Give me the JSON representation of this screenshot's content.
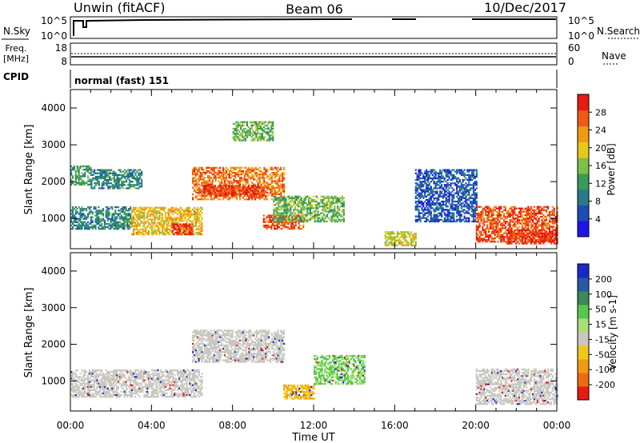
{
  "header": {
    "title_left": "Unwin (fitACF)",
    "title_center": "Beam 06",
    "title_right": "10/Dec/2017"
  },
  "status_panels": {
    "nsky": {
      "label": "N.Sky",
      "tick_top": "10^5",
      "tick_bottom": "10^0",
      "right_tick_top": "10^5",
      "right_tick_bottom": "10^0",
      "right_label": "N.Search"
    },
    "freq": {
      "label_lines": [
        "Freq.",
        "[MHz]"
      ],
      "tick_top": "18",
      "tick_bottom": "8",
      "right_tick_top": "60",
      "right_tick_bottom": "0",
      "right_label": "Nave"
    },
    "cpid": {
      "label": "CPID",
      "value": "normal (fast) 151"
    }
  },
  "chart_data": [
    {
      "type": "heatmap",
      "name": "power",
      "ylabel": "Slant Range [km]",
      "xlabel": "",
      "xlim": [
        0,
        24
      ],
      "ylim": [
        180,
        4500
      ],
      "y_ticks": [
        1000,
        2000,
        3000,
        4000
      ],
      "x_tick_labels": [],
      "colorbar": {
        "label": "Power [dB]",
        "ticks": [
          "4",
          "8",
          "12",
          "16",
          "20",
          "24",
          "28"
        ],
        "colors": [
          "#1f14e8",
          "#1f4bb8",
          "#2a7a8a",
          "#3a9a5a",
          "#7cc04a",
          "#e8c81a",
          "#f09a12",
          "#f05a14",
          "#e81a14"
        ]
      },
      "echo_regions_hours_km_db": [
        {
          "t": [
            0.0,
            3.0
          ],
          "r": [
            700,
            1300
          ],
          "power_db": 10
        },
        {
          "t": [
            0.0,
            1.0
          ],
          "r": [
            1900,
            2400
          ],
          "power_db": 12
        },
        {
          "t": [
            1.0,
            3.5
          ],
          "r": [
            1800,
            2300
          ],
          "power_db": 10
        },
        {
          "t": [
            3.0,
            6.5
          ],
          "r": [
            550,
            1300
          ],
          "power_db": 20
        },
        {
          "t": [
            5.0,
            6.0
          ],
          "r": [
            550,
            850
          ],
          "power_db": 28
        },
        {
          "t": [
            6.0,
            10.5
          ],
          "r": [
            1500,
            2400
          ],
          "power_db": 24
        },
        {
          "t": [
            6.5,
            9.5
          ],
          "r": [
            1600,
            1900
          ],
          "power_db": 28
        },
        {
          "t": [
            8.0,
            10.0
          ],
          "r": [
            3100,
            3600
          ],
          "power_db": 14
        },
        {
          "t": [
            9.5,
            11.5
          ],
          "r": [
            700,
            1100
          ],
          "power_db": 26
        },
        {
          "t": [
            10.0,
            13.5
          ],
          "r": [
            900,
            1600
          ],
          "power_db": 14
        },
        {
          "t": [
            15.5,
            17.0
          ],
          "r": [
            250,
            650
          ],
          "power_db": 18
        },
        {
          "t": [
            17.0,
            20.0
          ],
          "r": [
            900,
            2300
          ],
          "power_db": 6
        },
        {
          "t": [
            20.0,
            24.0
          ],
          "r": [
            350,
            1300
          ],
          "power_db": 26
        },
        {
          "t": [
            21.5,
            24.0
          ],
          "r": [
            300,
            700
          ],
          "power_db": 28
        }
      ]
    },
    {
      "type": "heatmap",
      "name": "velocity",
      "ylabel": "Slant Range [km]",
      "xlabel": "Time UT",
      "xlim": [
        0,
        24
      ],
      "ylim": [
        180,
        4500
      ],
      "y_ticks": [
        1000,
        2000,
        3000,
        4000
      ],
      "x_tick_labels": [
        "00:00",
        "04:00",
        "08:00",
        "12:00",
        "16:00",
        "20:00",
        "00:00"
      ],
      "colorbar": {
        "label": "Velocity [m s-1]",
        "ticks": [
          "200",
          "100",
          "50",
          "15",
          "-15",
          "-50",
          "-100",
          "-200"
        ],
        "colors": [
          "#1a28c8",
          "#2a58a8",
          "#3a8a5a",
          "#58c84a",
          "#a8e078",
          "#c8c8c0",
          "#f0c818",
          "#f09a12",
          "#f06a14",
          "#e81a14"
        ]
      },
      "echo_regions_hours_km_ms": [
        {
          "t": [
            0.0,
            6.5
          ],
          "r": [
            550,
            1300
          ],
          "velocity": 0
        },
        {
          "t": [
            6.0,
            10.5
          ],
          "r": [
            1500,
            2400
          ],
          "velocity": 0
        },
        {
          "t": [
            10.5,
            12.0
          ],
          "r": [
            500,
            900
          ],
          "velocity": -60
        },
        {
          "t": [
            12.0,
            14.5
          ],
          "r": [
            900,
            1700
          ],
          "velocity": 30
        },
        {
          "t": [
            20.0,
            24.0
          ],
          "r": [
            350,
            1300
          ],
          "velocity": 0
        }
      ]
    }
  ],
  "colors": {
    "axes": "#000000",
    "ground_scatter": "#c8c8c0"
  }
}
